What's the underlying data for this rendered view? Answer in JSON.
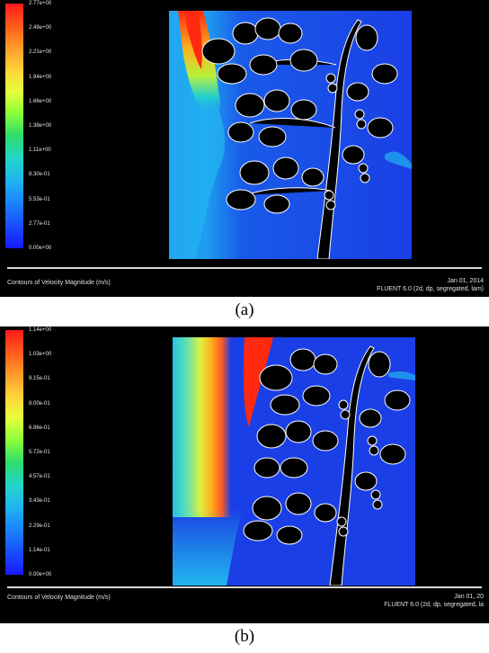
{
  "panels": [
    {
      "caption": "(a)",
      "legend_ticks": [
        "2.77e+00",
        "2.49e+00",
        "2.21e+00",
        "1.94e+00",
        "1.66e+00",
        "1.38e+00",
        "1.11e+00",
        "8.30e-01",
        "5.53e-01",
        "2.77e-01",
        "0.00e+00"
      ],
      "footer_left": "Contours of Velocity Magnitude (m/s)",
      "footer_right_line1": "Jan 01, 2014",
      "footer_right_line2": "FLUENT 6.0 (2d, dp, segregated, lam)"
    },
    {
      "caption": "(b)",
      "legend_ticks": [
        "1.14e+00",
        "1.03e+00",
        "9.15e-01",
        "8.00e-01",
        "6.86e-01",
        "5.72e-01",
        "4.57e-01",
        "3.43e-01",
        "2.29e-01",
        "1.14e-01",
        "0.00e+00"
      ],
      "footer_left": "Contours of Velocity Magnitude (m/s)",
      "footer_right_line1": "Jan 01, 20",
      "footer_right_line2": "FLUENT 6.0 (2d, dp, segregated, la"
    }
  ],
  "colors": {
    "background": "#000000",
    "field_blue": "#1a3fe6",
    "field_light_blue": "#22b4f0",
    "tree_fill": "#000000",
    "tree_outline": "#ffffff",
    "hot": "#ff2a10"
  }
}
